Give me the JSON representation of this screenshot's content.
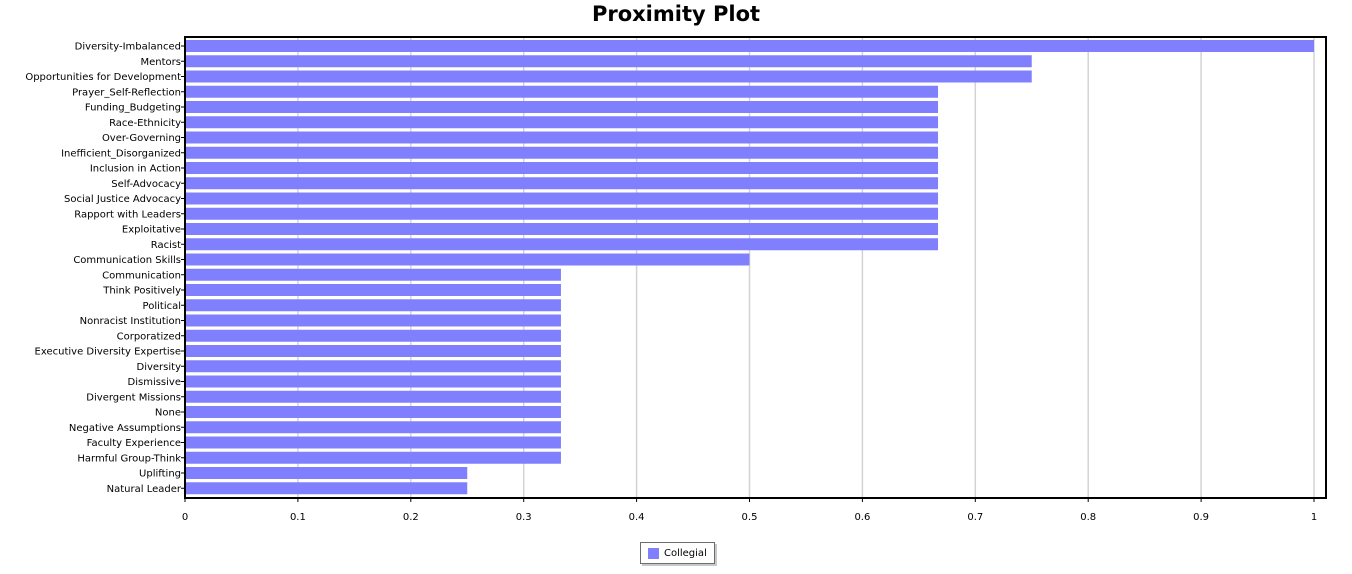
{
  "chart_data": {
    "type": "bar",
    "orientation": "horizontal",
    "title": "Proximity Plot",
    "xlabel": "",
    "ylabel": "",
    "xlim": [
      0,
      1
    ],
    "x_ticks": [
      "0",
      "0.1",
      "0.2",
      "0.3",
      "0.4",
      "0.5",
      "0.6",
      "0.7",
      "0.8",
      "0.9",
      "1"
    ],
    "grid": "vertical",
    "legend_position": "bottom-center",
    "categories": [
      "Diversity-Imbalanced",
      "Mentors",
      "Opportunities for Development",
      "Prayer_Self-Reflection",
      "Funding_Budgeting",
      "Race-Ethnicity",
      "Over-Governing",
      "Inefficient_Disorganized",
      "Inclusion in Action",
      "Self-Advocacy",
      "Social Justice Advocacy",
      "Rapport with Leaders",
      "Exploitative",
      "Racist",
      "Communication Skills",
      "Communication",
      "Think Positively",
      "Political",
      "Nonracist Institution",
      "Corporatized",
      "Executive Diversity Expertise",
      "Diversity",
      "Dismissive",
      "Divergent Missions",
      "None",
      "Negative Assumptions",
      "Faculty Experience",
      "Harmful Group-Think",
      "Uplifting",
      "Natural Leader"
    ],
    "series": [
      {
        "name": "Collegial",
        "color": "#8080ff",
        "values": [
          1.0,
          0.75,
          0.75,
          0.667,
          0.667,
          0.667,
          0.667,
          0.667,
          0.667,
          0.667,
          0.667,
          0.667,
          0.667,
          0.667,
          0.5,
          0.333,
          0.333,
          0.333,
          0.333,
          0.333,
          0.333,
          0.333,
          0.333,
          0.333,
          0.333,
          0.333,
          0.333,
          0.333,
          0.25,
          0.25
        ]
      }
    ]
  }
}
